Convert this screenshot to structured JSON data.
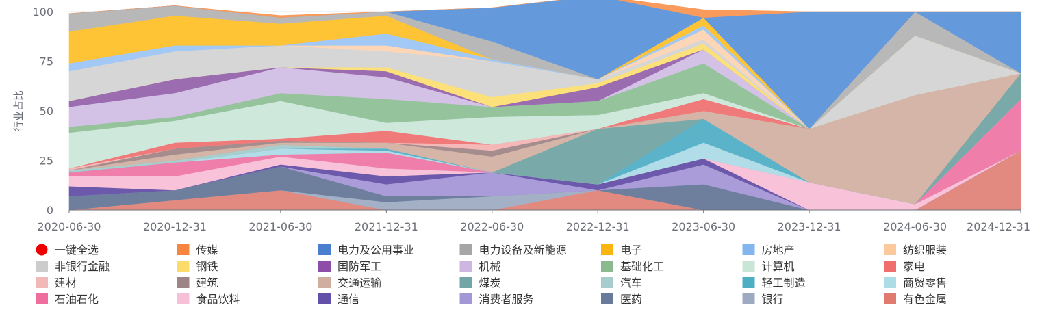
{
  "chart_data": {
    "type": "area",
    "stacked": true,
    "normalized_percent": true,
    "title": "",
    "xlabel": "",
    "ylabel": "行业占比",
    "ylim": [
      0,
      100
    ],
    "yticks": [
      0,
      25,
      50,
      75,
      100
    ],
    "grid": true,
    "legend_position": "bottom",
    "legend_select_all": {
      "label": "一键全选",
      "color": "#ee0000"
    },
    "categories": [
      "2020-06-30",
      "2020-12-31",
      "2021-06-30",
      "2021-12-31",
      "2022-06-30",
      "2022-12-31",
      "2023-06-30",
      "2023-12-31",
      "2024-06-30",
      "2024-12-31"
    ],
    "series": [
      {
        "name": "有色金属",
        "color": "#e38a80",
        "values": [
          0,
          5,
          10,
          0,
          0,
          10,
          0,
          0,
          0,
          30
        ]
      },
      {
        "name": "银行",
        "color": "#a3b0c6",
        "values": [
          0,
          0,
          0,
          4,
          7,
          0,
          0,
          0,
          0,
          0
        ]
      },
      {
        "name": "医药",
        "color": "#6e7f9e",
        "values": [
          7,
          5,
          12,
          3,
          0,
          0,
          13,
          0,
          0,
          0
        ]
      },
      {
        "name": "消费者服务",
        "color": "#a99cd8",
        "values": [
          0,
          0,
          0,
          6,
          12,
          0,
          10,
          0,
          0,
          0
        ]
      },
      {
        "name": "通信",
        "color": "#6c59ab",
        "values": [
          5,
          0,
          1,
          4,
          0,
          3,
          3,
          0,
          0,
          0
        ]
      },
      {
        "name": "食品饮料",
        "color": "#f8c3d8",
        "values": [
          5,
          7,
          4,
          4,
          0,
          0,
          0,
          14,
          3,
          0
        ]
      },
      {
        "name": "石油石化",
        "color": "#ef7eaa",
        "values": [
          2,
          7,
          1,
          8,
          0,
          0,
          0,
          0,
          0,
          26
        ]
      },
      {
        "name": "商贸零售",
        "color": "#b0dde8",
        "values": [
          0,
          0,
          3,
          1,
          0,
          0,
          8,
          0,
          0,
          0
        ]
      },
      {
        "name": "轻工制造",
        "color": "#5ab3c8",
        "values": [
          0,
          0,
          0,
          1,
          0,
          0,
          12,
          0,
          0,
          0
        ]
      },
      {
        "name": "汽车",
        "color": "#a8cece",
        "values": [
          1,
          1,
          2,
          0,
          0,
          0,
          0,
          0,
          0,
          0
        ]
      },
      {
        "name": "煤炭",
        "color": "#7aa9a9",
        "values": [
          0,
          0,
          0,
          0,
          0,
          28,
          0,
          0,
          0,
          13
        ]
      },
      {
        "name": "交通运输",
        "color": "#d5b5a8",
        "values": [
          0,
          3,
          1,
          3,
          8,
          0,
          4,
          27,
          55,
          0
        ]
      },
      {
        "name": "建筑",
        "color": "#a68d8d",
        "values": [
          0,
          3,
          1,
          0,
          3,
          0,
          0,
          0,
          0,
          0
        ]
      },
      {
        "name": "建材",
        "color": "#f4b8b8",
        "values": [
          1,
          0,
          0,
          0,
          3,
          0,
          0,
          0,
          0,
          0
        ]
      },
      {
        "name": "家电",
        "color": "#f07a7a",
        "values": [
          0,
          3,
          1,
          6,
          0,
          0,
          6,
          0,
          0,
          0
        ]
      },
      {
        "name": "计算机",
        "color": "#cfe8dc",
        "values": [
          18,
          11,
          19,
          4,
          14,
          7,
          3,
          0,
          0,
          0
        ]
      },
      {
        "name": "基础化工",
        "color": "#95c39c",
        "values": [
          3,
          2,
          4,
          12,
          5,
          7,
          15,
          0,
          0,
          0
        ]
      },
      {
        "name": "机械",
        "color": "#d4c2e6",
        "values": [
          10,
          12,
          13,
          11,
          0,
          0,
          7,
          0,
          0,
          0
        ]
      },
      {
        "name": "国防军工",
        "color": "#9b6cb0",
        "values": [
          3,
          7,
          0,
          3,
          0,
          7,
          0,
          0,
          0,
          0
        ]
      },
      {
        "name": "钢铁",
        "color": "#fce07a",
        "values": [
          0,
          0,
          0,
          2,
          5,
          2,
          3,
          0,
          0,
          0
        ]
      },
      {
        "name": "非银行金融",
        "color": "#d6d6d6",
        "values": [
          15,
          14,
          11,
          8,
          18,
          2,
          2,
          0,
          30,
          0
        ]
      },
      {
        "name": "纺织服装",
        "color": "#fcd6b6",
        "values": [
          0,
          0,
          0,
          3,
          0,
          0,
          5,
          0,
          0,
          0
        ]
      },
      {
        "name": "房地产",
        "color": "#a2c8f6",
        "values": [
          4,
          3,
          0,
          6,
          1,
          0,
          2,
          0,
          0,
          0
        ]
      },
      {
        "name": "电子",
        "color": "#ffc435",
        "values": [
          16,
          15,
          11,
          9,
          0,
          0,
          4,
          0,
          0,
          0
        ]
      },
      {
        "name": "电力设备及新能源",
        "color": "#b8b8b8",
        "values": [
          9,
          5,
          3,
          2,
          9,
          0,
          0,
          0,
          12,
          0
        ]
      },
      {
        "name": "电力及公用事业",
        "color": "#6499dc",
        "values": [
          0,
          0,
          0,
          0,
          17,
          42,
          0,
          59,
          0,
          31
        ]
      },
      {
        "name": "传媒",
        "color": "#f89b5c",
        "values": [
          0,
          0,
          1,
          0,
          0,
          0,
          4,
          0,
          0,
          0
        ]
      }
    ],
    "legend_order": [
      "一键全选",
      "传媒",
      "电力及公用事业",
      "电力设备及新能源",
      "电子",
      "房地产",
      "纺织服装",
      "非银行金融",
      "钢铁",
      "国防军工",
      "机械",
      "基础化工",
      "计算机",
      "家电",
      "建材",
      "建筑",
      "交通运输",
      "煤炭",
      "汽车",
      "轻工制造",
      "商贸零售",
      "石油石化",
      "食品饮料",
      "通信",
      "消费者服务",
      "医药",
      "银行",
      "有色金属"
    ],
    "legend_colors": {
      "传媒": "#f5853f",
      "电力及公用事业": "#4a7ecf",
      "电力设备及新能源": "#a6a6a6",
      "电子": "#fcb510",
      "房地产": "#83b6ef",
      "纺织服装": "#fcc99c",
      "非银行金融": "#cccccc",
      "钢铁": "#fddb6b",
      "国防军工": "#8c4ea6",
      "机械": "#cdb6e0",
      "基础化工": "#8cba90",
      "计算机": "#c8e6d6",
      "家电": "#ef6e6e",
      "建材": "#f2b8b8",
      "建筑": "#9e8585",
      "交通运输": "#d1ad9f",
      "煤炭": "#72a6a6",
      "汽车": "#a7cccc",
      "轻工制造": "#4eaec4",
      "商贸零售": "#addbe6",
      "石油石化": "#ef6e9e",
      "食品饮料": "#f8c0d6",
      "通信": "#6350a8",
      "消费者服务": "#a497d6",
      "医药": "#6a7a99",
      "银行": "#9eaac2",
      "有色金属": "#e07b70"
    }
  }
}
